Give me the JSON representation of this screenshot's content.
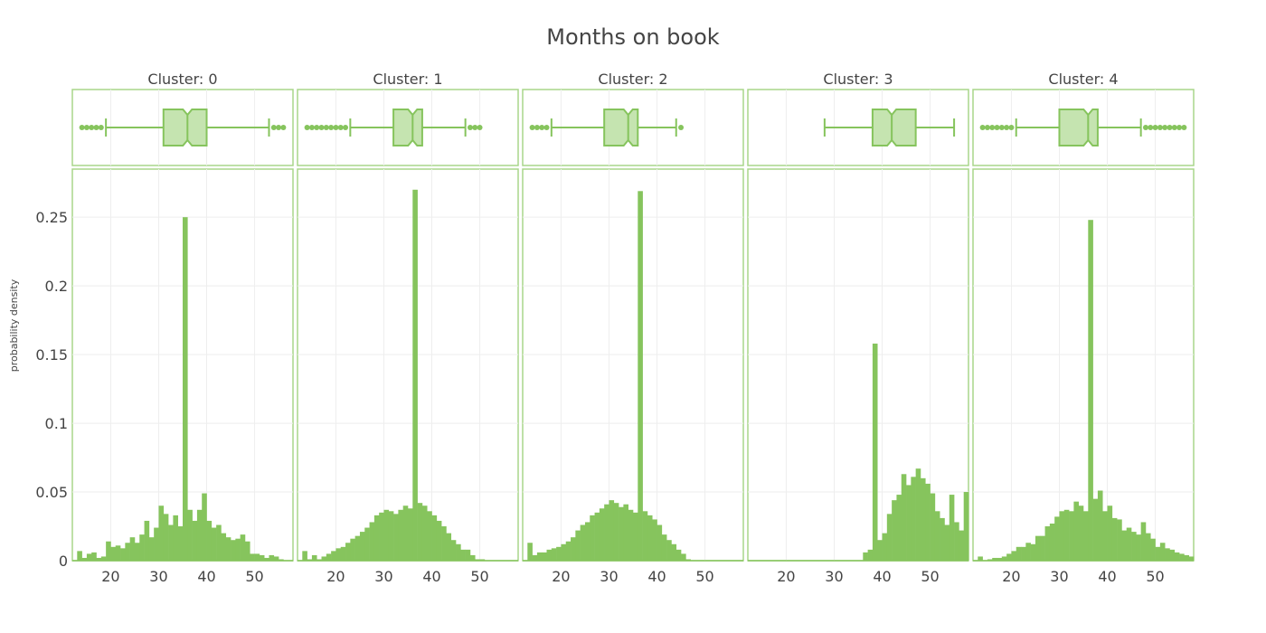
{
  "chart_data": {
    "type": "histogram",
    "title": "Months on book",
    "ylabel": "probability density",
    "xlabel": "",
    "color": "#86c45d",
    "grid": true,
    "legend": "none",
    "xlim": [
      12,
      58
    ],
    "ylim": [
      0,
      0.285
    ],
    "bin_start": 13,
    "bin_width": 1,
    "y_ticks": [
      {
        "value": 0,
        "label": "0"
      },
      {
        "value": 0.05,
        "label": "0.05"
      },
      {
        "value": 0.1,
        "label": "0.1"
      },
      {
        "value": 0.15,
        "label": "0.15"
      },
      {
        "value": 0.2,
        "label": "0.2"
      },
      {
        "value": 0.25,
        "label": "0.25"
      }
    ],
    "x_ticks": [
      {
        "value": 20,
        "label": "20"
      },
      {
        "value": 30,
        "label": "30"
      },
      {
        "value": 40,
        "label": "40"
      },
      {
        "value": 50,
        "label": "50"
      }
    ],
    "panels": [
      {
        "title": "Cluster: 0",
        "box": {
          "whisker_low": 19,
          "q1": 31,
          "median": 36,
          "q3": 40,
          "whisker_high": 53,
          "outliers_low": [
            14,
            15,
            16,
            17,
            18
          ],
          "outliers_high": [
            54,
            55,
            56
          ]
        },
        "density": [
          0.007,
          0.002,
          0.005,
          0.006,
          0.002,
          0.003,
          0.014,
          0.01,
          0.011,
          0.009,
          0.013,
          0.017,
          0.013,
          0.019,
          0.029,
          0.017,
          0.024,
          0.04,
          0.034,
          0.026,
          0.033,
          0.025,
          0.25,
          0.037,
          0.029,
          0.037,
          0.049,
          0.029,
          0.024,
          0.026,
          0.02,
          0.017,
          0.015,
          0.016,
          0.019,
          0.014,
          0.005,
          0.005,
          0.004,
          0.002,
          0.004,
          0.003,
          0.001,
          0.0,
          0.0
        ]
      },
      {
        "title": "Cluster: 1",
        "box": {
          "whisker_low": 23,
          "q1": 32,
          "median": 36,
          "q3": 38,
          "whisker_high": 47,
          "outliers_low": [
            14,
            15,
            16,
            17,
            18,
            19,
            20,
            21,
            22
          ],
          "outliers_high": [
            48,
            49,
            50
          ]
        },
        "density": [
          0.007,
          0.001,
          0.004,
          0.001,
          0.003,
          0.005,
          0.007,
          0.009,
          0.01,
          0.013,
          0.016,
          0.018,
          0.021,
          0.024,
          0.028,
          0.033,
          0.035,
          0.037,
          0.036,
          0.034,
          0.037,
          0.04,
          0.038,
          0.27,
          0.042,
          0.04,
          0.036,
          0.033,
          0.029,
          0.025,
          0.02,
          0.015,
          0.012,
          0.008,
          0.008,
          0.004,
          0.001,
          0.001,
          0.0,
          0.0,
          0.0,
          0.0,
          0.0,
          0.0,
          0.0
        ]
      },
      {
        "title": "Cluster: 2",
        "box": {
          "whisker_low": 18,
          "q1": 29,
          "median": 34,
          "q3": 36,
          "whisker_high": 44,
          "outliers_low": [
            14,
            15,
            16,
            17
          ],
          "outliers_high": [
            45
          ]
        },
        "density": [
          0.013,
          0.004,
          0.006,
          0.006,
          0.008,
          0.009,
          0.01,
          0.012,
          0.014,
          0.017,
          0.022,
          0.026,
          0.028,
          0.033,
          0.035,
          0.038,
          0.041,
          0.044,
          0.042,
          0.039,
          0.041,
          0.037,
          0.035,
          0.269,
          0.036,
          0.033,
          0.03,
          0.026,
          0.019,
          0.015,
          0.012,
          0.008,
          0.005,
          0.001,
          0.0,
          0.0,
          0.0,
          0.0,
          0.0,
          0.0,
          0.0,
          0.0,
          0.0,
          0.0,
          0.0
        ]
      },
      {
        "title": "Cluster: 3",
        "box": {
          "whisker_low": 28,
          "q1": 38,
          "median": 42,
          "q3": 47,
          "whisker_high": 55,
          "outliers_low": [],
          "outliers_high": []
        },
        "density": [
          0.0,
          0.0,
          0.0,
          0.0,
          0.0,
          0.0,
          0.0,
          0.0,
          0.0,
          0.0,
          0.0,
          0.0,
          0.0,
          0.0,
          0.0,
          0.0,
          0.0,
          0.0,
          0.0,
          0.0,
          0.0,
          0.0,
          0.0,
          0.006,
          0.008,
          0.158,
          0.015,
          0.02,
          0.034,
          0.044,
          0.048,
          0.063,
          0.055,
          0.061,
          0.067,
          0.06,
          0.056,
          0.049,
          0.036,
          0.031,
          0.026,
          0.048,
          0.028,
          0.022,
          0.05
        ]
      },
      {
        "title": "Cluster: 4",
        "box": {
          "whisker_low": 21,
          "q1": 30,
          "median": 36,
          "q3": 38,
          "whisker_high": 47,
          "outliers_low": [
            14,
            15,
            16,
            17,
            18,
            19,
            20
          ],
          "outliers_high": [
            48,
            49,
            50,
            51,
            52,
            53,
            54,
            55,
            56
          ]
        },
        "density": [
          0.003,
          0.0,
          0.001,
          0.002,
          0.002,
          0.003,
          0.005,
          0.007,
          0.01,
          0.01,
          0.013,
          0.012,
          0.018,
          0.018,
          0.025,
          0.027,
          0.032,
          0.036,
          0.037,
          0.036,
          0.043,
          0.04,
          0.036,
          0.248,
          0.045,
          0.051,
          0.036,
          0.04,
          0.031,
          0.03,
          0.022,
          0.024,
          0.021,
          0.019,
          0.028,
          0.02,
          0.016,
          0.01,
          0.013,
          0.009,
          0.008,
          0.006,
          0.005,
          0.004,
          0.003
        ]
      }
    ]
  }
}
